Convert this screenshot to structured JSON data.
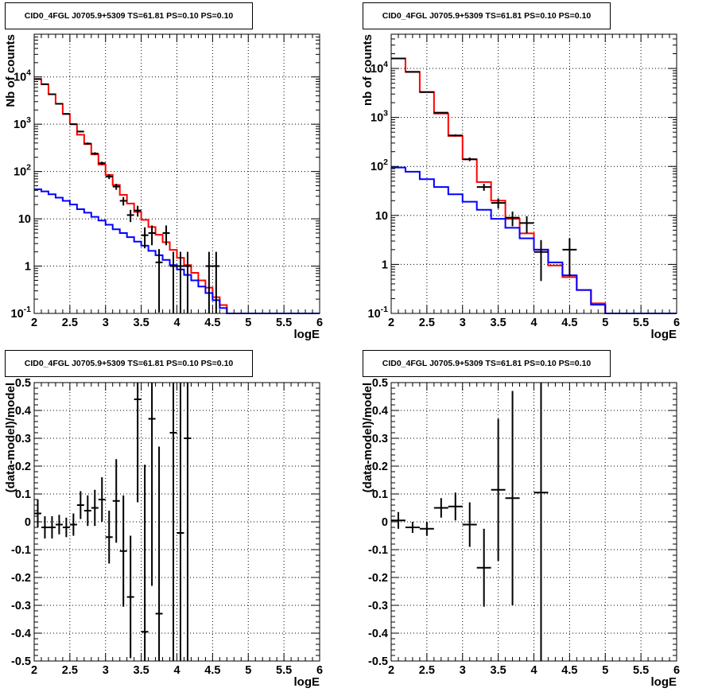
{
  "chart_data": [
    {
      "type": "line",
      "title": "CID0_4FGL J0705.9+5309 TS=61.81 PS=0.10 PS=0.10",
      "xlabel": "logE",
      "ylabel": "Nb of counts",
      "xlim": [
        2,
        6
      ],
      "ylim": [
        0.1,
        80000
      ],
      "yscale": "log",
      "grid": true,
      "x_ticks": [
        "2",
        "2.5",
        "3",
        "3.5",
        "4",
        "4.5",
        "5",
        "5.5",
        "6"
      ],
      "y_ticks": [
        "10^-1",
        "1",
        "10",
        "10^2",
        "10^3",
        "10^4"
      ],
      "bin_width": 0.1,
      "series": [
        {
          "color": "#ff0000",
          "style": "step",
          "x": [
            2.05,
            2.15,
            2.25,
            2.35,
            2.45,
            2.55,
            2.65,
            2.75,
            2.85,
            2.95,
            3.05,
            3.15,
            3.25,
            3.35,
            3.45,
            3.55,
            3.65,
            3.75,
            3.85,
            3.95,
            4.05,
            4.15,
            4.25,
            4.35,
            4.45,
            4.55,
            4.65,
            4.75,
            4.85,
            4.95,
            5.05,
            5.15,
            5.25,
            5.35,
            5.45,
            5.55,
            5.65,
            5.75,
            5.85,
            5.95
          ],
          "values": [
            9000,
            7000,
            4300,
            2700,
            1650,
            1000,
            600,
            380,
            230,
            140,
            85,
            52,
            32,
            21,
            14,
            9.5,
            6.7,
            4.6,
            3.2,
            2.2,
            1.5,
            1.05,
            0.72,
            0.5,
            0.35,
            0.22,
            0.15,
            0.1,
            0.1,
            0.1,
            0.1,
            0.1,
            0.1,
            0.1,
            0.1,
            0.1,
            0.1,
            0.1,
            0.1,
            0.1
          ]
        },
        {
          "color": "#0000ff",
          "style": "step",
          "x": [
            2.05,
            2.15,
            2.25,
            2.35,
            2.45,
            2.55,
            2.65,
            2.75,
            2.85,
            2.95,
            3.05,
            3.15,
            3.25,
            3.35,
            3.45,
            3.55,
            3.65,
            3.75,
            3.85,
            3.95,
            4.05,
            4.15,
            4.25,
            4.35,
            4.45,
            4.55,
            4.65,
            4.75,
            4.85,
            4.95,
            5.05,
            5.15,
            5.25,
            5.35,
            5.45,
            5.55,
            5.65,
            5.75,
            5.85,
            5.95
          ],
          "values": [
            42,
            38,
            33,
            28,
            24,
            20,
            16,
            13.5,
            11,
            9.2,
            7.5,
            6,
            5,
            4.1,
            3.3,
            2.7,
            2.1,
            1.7,
            1.35,
            1.05,
            0.85,
            0.65,
            0.5,
            0.37,
            0.27,
            0.19,
            0.13,
            0.1,
            0.1,
            0.1,
            0.1,
            0.1,
            0.1,
            0.1,
            0.1,
            0.1,
            0.1,
            0.1,
            0.1,
            0.1
          ]
        },
        {
          "color": "#000000",
          "style": "points",
          "x": [
            2.05,
            2.15,
            2.25,
            2.35,
            2.45,
            2.55,
            2.65,
            2.75,
            2.85,
            2.95,
            3.05,
            3.15,
            3.25,
            3.35,
            3.45,
            3.55,
            3.65,
            3.75,
            3.85,
            3.95,
            4.05,
            4.15,
            4.45,
            4.55
          ],
          "values": [
            9000,
            7000,
            4300,
            2700,
            1650,
            1000,
            700,
            390,
            240,
            150,
            78,
            48,
            24,
            12,
            15,
            4.5,
            5,
            1.2,
            5,
            1,
            1,
            1,
            1,
            1
          ]
        }
      ]
    },
    {
      "type": "line",
      "title": "CID0_4FGL J0705.9+5309 TS=61.81 PS=0.10 PS=0.10",
      "xlabel": "logE",
      "ylabel": "nb of counts",
      "xlim": [
        2,
        6
      ],
      "ylim": [
        0.1,
        50000
      ],
      "yscale": "log",
      "grid": true,
      "x_ticks": [
        "2",
        "2.5",
        "3",
        "3.5",
        "4",
        "4.5",
        "5",
        "5.5",
        "6"
      ],
      "y_ticks": [
        "10^-1",
        "1",
        "10",
        "10^2",
        "10^3",
        "10^4"
      ],
      "bin_width": 0.2,
      "series": [
        {
          "color": "#ff0000",
          "style": "step",
          "x": [
            2.1,
            2.3,
            2.5,
            2.7,
            2.9,
            3.1,
            3.3,
            3.5,
            3.7,
            3.9,
            4.1,
            4.3,
            4.5,
            4.7,
            4.9,
            5.1,
            5.3,
            5.5,
            5.7,
            5.9
          ],
          "values": [
            16000,
            8500,
            3300,
            1200,
            420,
            140,
            48,
            20,
            8.5,
            4.3,
            2.0,
            0.95,
            0.55,
            0.3,
            0.16,
            0.1,
            0.1,
            0.1,
            0.1,
            0.1
          ]
        },
        {
          "color": "#0000ff",
          "style": "step",
          "x": [
            2.1,
            2.3,
            2.5,
            2.7,
            2.9,
            3.1,
            3.3,
            3.5,
            3.7,
            3.9,
            4.1,
            4.3,
            4.5,
            4.7,
            4.9,
            5.1,
            5.3,
            5.5,
            5.7,
            5.9
          ],
          "values": [
            95,
            78,
            55,
            38,
            27,
            19,
            13,
            8.5,
            5.6,
            3.4,
            2.0,
            1.1,
            0.6,
            0.3,
            0.15,
            0.1,
            0.1,
            0.1,
            0.1,
            0.1
          ]
        },
        {
          "color": "#000000",
          "style": "points",
          "x": [
            2.1,
            2.3,
            2.5,
            2.7,
            2.9,
            3.1,
            3.3,
            3.5,
            3.7,
            3.9,
            4.1,
            4.5
          ],
          "values": [
            16000,
            8500,
            3300,
            1250,
            430,
            140,
            38,
            18,
            9,
            7,
            1.8,
            2
          ]
        }
      ]
    },
    {
      "type": "scatter",
      "title": "CID0_4FGL J0705.9+5309 TS=61.81 PS=0.10 PS=0.10",
      "xlabel": "logE",
      "ylabel": "(data-model)/model",
      "xlim": [
        2,
        6
      ],
      "ylim": [
        -0.5,
        0.5
      ],
      "grid": true,
      "x_ticks": [
        "2",
        "2.5",
        "3",
        "3.5",
        "4",
        "4.5",
        "5",
        "5.5",
        "6"
      ],
      "y_ticks": [
        "-0.5",
        "-0.4",
        "-0.3",
        "-0.2",
        "-0.1",
        "0",
        "0.1",
        "0.2",
        "0.3",
        "0.4",
        "0.5"
      ],
      "bin_width": 0.1,
      "series": [
        {
          "color": "#000000",
          "style": "errorbars",
          "x": [
            2.05,
            2.15,
            2.25,
            2.35,
            2.45,
            2.55,
            2.65,
            2.75,
            2.85,
            2.95,
            3.05,
            3.15,
            3.25,
            3.35,
            3.45,
            3.55,
            3.65,
            3.75,
            3.95,
            4.05,
            4.15
          ],
          "values": [
            0.03,
            -0.02,
            -0.02,
            -0.01,
            -0.02,
            -0.01,
            0.06,
            0.04,
            0.05,
            0.08,
            -0.055,
            0.075,
            -0.105,
            -0.27,
            0.44,
            -0.395,
            0.37,
            -0.33,
            0.32,
            -0.04,
            0.3
          ],
          "errors": [
            0.05,
            0.04,
            0.04,
            0.035,
            0.035,
            0.04,
            0.05,
            0.055,
            0.065,
            0.08,
            0.095,
            0.15,
            0.2,
            0.22,
            0.37,
            0.6,
            0.6,
            0.6,
            1.0,
            1.0,
            1.0
          ]
        }
      ]
    },
    {
      "type": "scatter",
      "title": "CID0_4FGL J0705.9+5309 TS=61.81 PS=0.10 PS=0.10",
      "xlabel": "logE",
      "ylabel": "(data-model)/model",
      "xlim": [
        2,
        6
      ],
      "ylim": [
        -0.5,
        0.5
      ],
      "grid": true,
      "x_ticks": [
        "2",
        "2.5",
        "3",
        "3.5",
        "4",
        "4.5",
        "5",
        "5.5",
        "6"
      ],
      "y_ticks": [
        "-0.5",
        "-0.4",
        "-0.3",
        "-0.2",
        "-0.1",
        "0",
        "0.1",
        "0.2",
        "0.3",
        "0.4",
        "0.5"
      ],
      "bin_width": 0.2,
      "series": [
        {
          "color": "#000000",
          "style": "errorbars",
          "x": [
            2.1,
            2.3,
            2.5,
            2.7,
            2.9,
            3.1,
            3.3,
            3.5,
            3.7,
            4.1
          ],
          "values": [
            0.005,
            -0.02,
            -0.025,
            0.05,
            0.055,
            -0.01,
            -0.165,
            0.115,
            0.085,
            0.105
          ],
          "errors": [
            0.03,
            0.02,
            0.025,
            0.035,
            0.05,
            0.08,
            0.14,
            0.255,
            0.385,
            1.0
          ]
        }
      ]
    }
  ]
}
